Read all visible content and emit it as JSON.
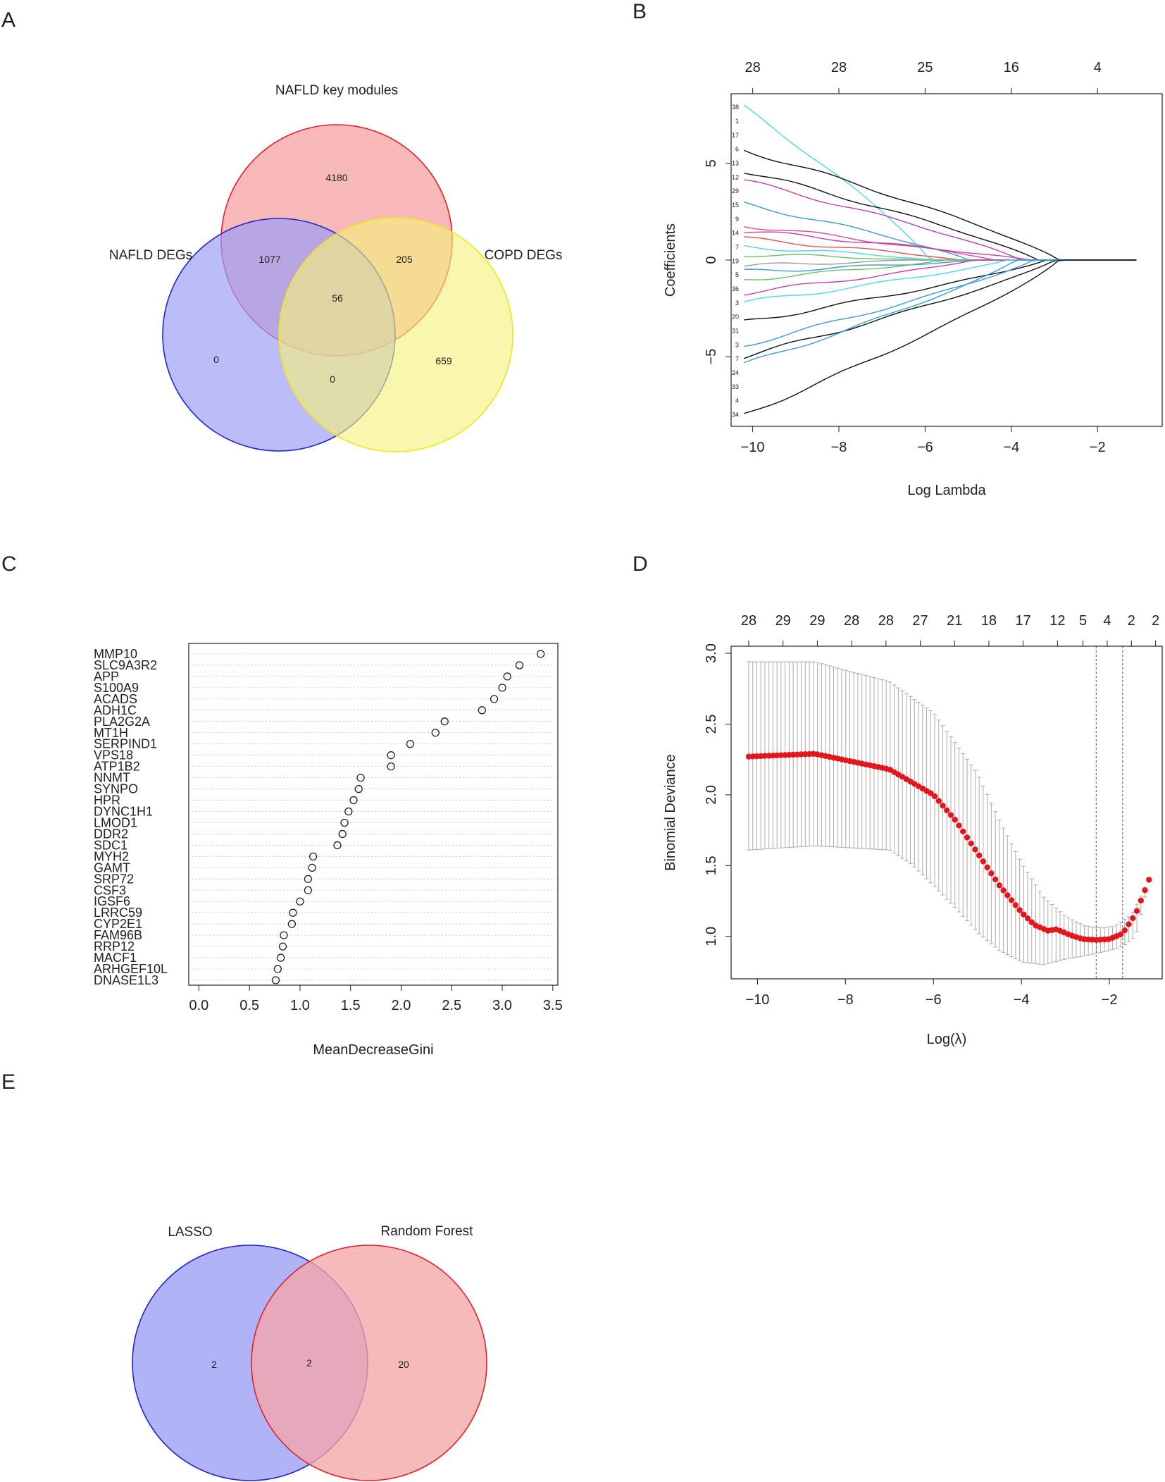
{
  "panels": {
    "A": {
      "label": "A",
      "chart_data": {
        "type": "venn",
        "sets": [
          "NAFLD key modules",
          "NAFLD DEGs",
          "COPD DEGs"
        ],
        "set_colors": [
          "#f4a6a8",
          "#aeb0f5",
          "#f7f59a"
        ],
        "regions": {
          "key_only": "4180",
          "key_and_nafld": "1077",
          "key_and_copd": "205",
          "all_three": "56",
          "nafld_only": "0",
          "copd_only": "659",
          "nafld_and_copd": "0"
        }
      }
    },
    "B": {
      "label": "B",
      "chart_data": {
        "type": "line",
        "xlabel": "Log Lambda",
        "ylabel": "Coefficients",
        "xlim": [
          -10.5,
          -0.5
        ],
        "ylim": [
          -8.6,
          8.6
        ],
        "xticks": [
          "−10",
          "−8",
          "−6",
          "−4",
          "−2"
        ],
        "xtick_values": [
          -10,
          -8,
          -6,
          -4,
          -2
        ],
        "yticks": [
          "−5",
          "0",
          "5"
        ],
        "ytick_values": [
          -5,
          0,
          5
        ],
        "top_axis_labels": [
          "28",
          "28",
          "25",
          "16",
          "4"
        ],
        "top_axis_values": [
          -10,
          -8,
          -6,
          -4,
          -2
        ],
        "path_labels": [
          "38",
          "1",
          "17",
          "6",
          "13",
          "12",
          "29",
          "15",
          "9",
          "14",
          "7",
          "19",
          "5",
          "36",
          "3",
          "20",
          "31",
          "3",
          "7",
          "24",
          "33",
          "4",
          "34"
        ],
        "series": [
          {
            "name": "38",
            "color": "#4fd6e3",
            "start": 7.9,
            "end_lambda": -5.9
          },
          {
            "name": "1",
            "color": "#111111",
            "start": 5.7,
            "end_lambda": -2.9
          },
          {
            "name": "17",
            "color": "#111111",
            "start": 4.6,
            "end_lambda": -3.4
          },
          {
            "name": "6",
            "color": "#c43fb0",
            "start": 4.1,
            "end_lambda": -3.8
          },
          {
            "name": "13",
            "color": "#3b9ad9",
            "start": 2.9,
            "end_lambda": -5.0
          },
          {
            "name": "12",
            "color": "#d64e8e",
            "start": 1.8,
            "end_lambda": -4.4
          },
          {
            "name": "29",
            "color": "#c43fb0",
            "start": 1.5,
            "end_lambda": -3.6
          },
          {
            "name": "15",
            "color": "#e05757",
            "start": 1.1,
            "end_lambda": -5.2
          },
          {
            "name": "9",
            "color": "#4fd6e3",
            "start": 0.7,
            "end_lambda": -5.8
          },
          {
            "name": "14",
            "color": "#66c466",
            "start": 0.3,
            "end_lambda": -6.1
          },
          {
            "name": "7",
            "color": "#9a9a9a",
            "start": -0.3,
            "end_lambda": -6.5
          },
          {
            "name": "19",
            "color": "#3b9ad9",
            "start": -0.6,
            "end_lambda": -4.7
          },
          {
            "name": "36",
            "color": "#66c466",
            "start": -1.0,
            "end_lambda": -5.5
          },
          {
            "name": "3",
            "color": "#c43fb0",
            "start": -1.7,
            "end_lambda": -4.9
          },
          {
            "name": "20",
            "color": "#4fd6e3",
            "start": -2.2,
            "end_lambda": -4.1
          },
          {
            "name": "31",
            "color": "#111111",
            "start": -3.2,
            "end_lambda": -3.2
          },
          {
            "name": "24",
            "color": "#3b9ad9",
            "start": -4.4,
            "end_lambda": -3.5
          },
          {
            "name": "33",
            "color": "#111111",
            "start": -5.0,
            "end_lambda": -3.0
          },
          {
            "name": "4",
            "color": "#3b9ad9",
            "start": -5.4,
            "end_lambda": -3.9
          },
          {
            "name": "34",
            "color": "#111111",
            "start": -8.0,
            "end_lambda": -2.9
          }
        ]
      }
    },
    "C": {
      "label": "C",
      "chart_data": {
        "type": "scatter",
        "xlabel": "MeanDecreaseGini",
        "xlim": [
          -0.1,
          3.55
        ],
        "xticks": [
          "0.0",
          "0.5",
          "1.0",
          "1.5",
          "2.0",
          "2.5",
          "3.0",
          "3.5"
        ],
        "xtick_values": [
          0.0,
          0.5,
          1.0,
          1.5,
          2.0,
          2.5,
          3.0,
          3.5
        ],
        "categories": [
          "MMP10",
          "SLC9A3R2",
          "APP",
          "S100A9",
          "ACADS",
          "ADH1C",
          "PLA2G2A",
          "MT1H",
          "SERPIND1",
          "VPS18",
          "ATP1B2",
          "NNMT",
          "SYNPO",
          "HPR",
          "DYNC1H1",
          "LMOD1",
          "DDR2",
          "SDC1",
          "MYH2",
          "GAMT",
          "SRP72",
          "CSF3",
          "IGSF6",
          "LRRC59",
          "CYP2E1",
          "FAM96B",
          "RRP12",
          "MACF1",
          "ARHGEF10L",
          "DNASE1L3"
        ],
        "values": [
          3.38,
          3.17,
          3.05,
          3.0,
          2.92,
          2.8,
          2.43,
          2.34,
          2.09,
          1.9,
          1.9,
          1.6,
          1.58,
          1.53,
          1.48,
          1.44,
          1.42,
          1.37,
          1.13,
          1.12,
          1.08,
          1.08,
          1.0,
          0.93,
          0.92,
          0.84,
          0.83,
          0.81,
          0.78,
          0.76
        ]
      }
    },
    "D": {
      "label": "D",
      "chart_data": {
        "type": "scatter",
        "xlabel": "Log(λ)",
        "ylabel": "Binomial Deviance",
        "xlim": [
          -10.6,
          -0.8
        ],
        "ylim": [
          0.7,
          3.05
        ],
        "xticks": [
          "−10",
          "−8",
          "−6",
          "−4",
          "−2"
        ],
        "xtick_values": [
          -10,
          -8,
          -6,
          -4,
          -2
        ],
        "yticks": [
          "1.0",
          "1.5",
          "2.0",
          "2.5",
          "3.0"
        ],
        "ytick_values": [
          1.0,
          1.5,
          2.0,
          2.5,
          3.0
        ],
        "top_axis_labels": [
          "28",
          "29",
          "29",
          "28",
          "28",
          "27",
          "21",
          "18",
          "17",
          "12",
          "5",
          "4",
          "2",
          "2"
        ],
        "top_axis_values": [
          -10.2,
          -9.42,
          -8.64,
          -7.86,
          -7.08,
          -6.3,
          -5.52,
          -4.74,
          -3.96,
          -3.18,
          -2.6,
          -2.05,
          -1.5,
          -0.95
        ],
        "vlines": [
          -2.3,
          -1.7
        ],
        "lambda_range": [
          -10.2,
          -1.1
        ],
        "n_points": 100,
        "mean_curve_knots": {
          "x": [
            -10.2,
            -8.7,
            -7.0,
            -6.0,
            -5.5,
            -5.0,
            -4.5,
            -4.0,
            -3.7,
            -3.4,
            -3.2,
            -2.9,
            -2.6,
            -2.3,
            -2.0,
            -1.7,
            -1.4,
            -1.1
          ],
          "y": [
            2.27,
            2.29,
            2.18,
            2.0,
            1.82,
            1.59,
            1.36,
            1.17,
            1.08,
            1.04,
            1.05,
            1.01,
            0.98,
            0.975,
            0.98,
            1.02,
            1.16,
            1.4
          ]
        },
        "upper_curve_knots": {
          "x": [
            -10.2,
            -8.7,
            -8.0,
            -7.0,
            -6.0,
            -5.0,
            -4.5,
            -4.0,
            -3.5,
            -3.0,
            -2.6,
            -2.3,
            -1.9,
            -1.5,
            -1.1
          ],
          "y": [
            2.94,
            2.94,
            2.88,
            2.8,
            2.58,
            2.15,
            1.82,
            1.52,
            1.28,
            1.14,
            1.08,
            1.06,
            1.07,
            1.15,
            1.4
          ]
        },
        "lower_curve_knots": {
          "x": [
            -10.2,
            -8.7,
            -7.0,
            -6.5,
            -6.0,
            -5.5,
            -5.0,
            -4.5,
            -4.0,
            -3.5,
            -3.0,
            -2.6,
            -2.3,
            -2.0,
            -1.7,
            -1.4,
            -1.1
          ],
          "y": [
            1.61,
            1.64,
            1.61,
            1.51,
            1.36,
            1.2,
            1.03,
            0.9,
            0.82,
            0.8,
            0.84,
            0.86,
            0.88,
            0.9,
            0.93,
            1.0,
            1.4
          ]
        }
      }
    },
    "E": {
      "label": "E",
      "chart_data": {
        "type": "venn",
        "sets": [
          "LASSO",
          "Random Forest"
        ],
        "set_colors": [
          "#aeb0f5",
          "#f4a6a8"
        ],
        "regions": {
          "lasso_only": "2",
          "both": "2",
          "rf_only": "20"
        }
      }
    }
  }
}
